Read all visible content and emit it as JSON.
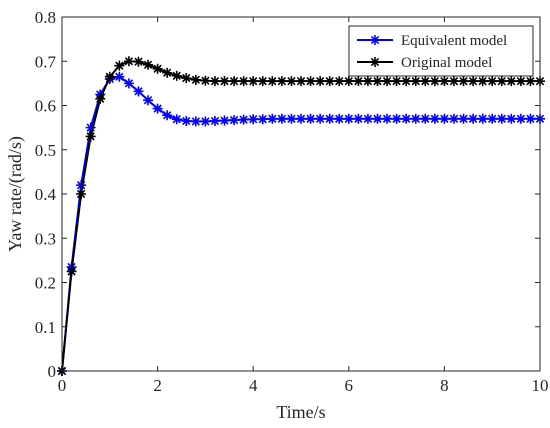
{
  "chart_data": {
    "type": "line",
    "title": "",
    "xlabel": "Time/s",
    "ylabel": "Yaw rate/(rad/s)",
    "xlim": [
      0,
      10
    ],
    "ylim": [
      0,
      0.8
    ],
    "xticks": [
      0,
      2,
      4,
      6,
      8,
      10
    ],
    "xtick_labels": [
      "0",
      "2",
      "4",
      "6",
      "8",
      "10"
    ],
    "yticks": [
      0,
      0.1,
      0.2,
      0.3,
      0.4,
      0.5,
      0.6,
      0.7,
      0.8
    ],
    "ytick_labels": [
      "0",
      "0.1",
      "0.2",
      "0.3",
      "0.4",
      "0.5",
      "0.6",
      "0.7",
      "0.8"
    ],
    "grid": false,
    "legend_position": "top-right",
    "marker": "asterisk",
    "x": [
      0,
      0.2,
      0.4,
      0.6,
      0.8,
      1.0,
      1.2,
      1.4,
      1.6,
      1.8,
      2.0,
      2.2,
      2.4,
      2.6,
      2.8,
      3.0,
      3.2,
      3.4,
      3.6,
      3.8,
      4.0,
      4.2,
      4.4,
      4.6,
      4.8,
      5.0,
      5.2,
      5.4,
      5.6,
      5.8,
      6.0,
      6.2,
      6.4,
      6.6,
      6.8,
      7.0,
      7.2,
      7.4,
      7.6,
      7.8,
      8.0,
      8.2,
      8.4,
      8.6,
      8.8,
      9.0,
      9.2,
      9.4,
      9.6,
      9.8,
      10.0
    ],
    "series": [
      {
        "name": "Equivalent model",
        "color": "#0000ff",
        "values": [
          0,
          0.235,
          0.42,
          0.55,
          0.625,
          0.66,
          0.665,
          0.65,
          0.632,
          0.612,
          0.593,
          0.578,
          0.569,
          0.565,
          0.564,
          0.564,
          0.565,
          0.566,
          0.567,
          0.568,
          0.569,
          0.569,
          0.57,
          0.57,
          0.57,
          0.57,
          0.57,
          0.57,
          0.57,
          0.57,
          0.57,
          0.57,
          0.57,
          0.57,
          0.57,
          0.57,
          0.57,
          0.57,
          0.57,
          0.57,
          0.57,
          0.57,
          0.57,
          0.57,
          0.57,
          0.57,
          0.57,
          0.57,
          0.57,
          0.57,
          0.57
        ]
      },
      {
        "name": "Original model",
        "color": "#000000",
        "values": [
          0,
          0.225,
          0.4,
          0.53,
          0.615,
          0.665,
          0.69,
          0.7,
          0.699,
          0.692,
          0.683,
          0.674,
          0.667,
          0.662,
          0.658,
          0.656,
          0.655,
          0.655,
          0.655,
          0.655,
          0.655,
          0.655,
          0.655,
          0.655,
          0.655,
          0.655,
          0.655,
          0.655,
          0.655,
          0.655,
          0.655,
          0.655,
          0.655,
          0.655,
          0.655,
          0.655,
          0.655,
          0.655,
          0.655,
          0.655,
          0.655,
          0.655,
          0.655,
          0.655,
          0.655,
          0.655,
          0.655,
          0.655,
          0.655,
          0.655,
          0.655
        ]
      }
    ]
  }
}
